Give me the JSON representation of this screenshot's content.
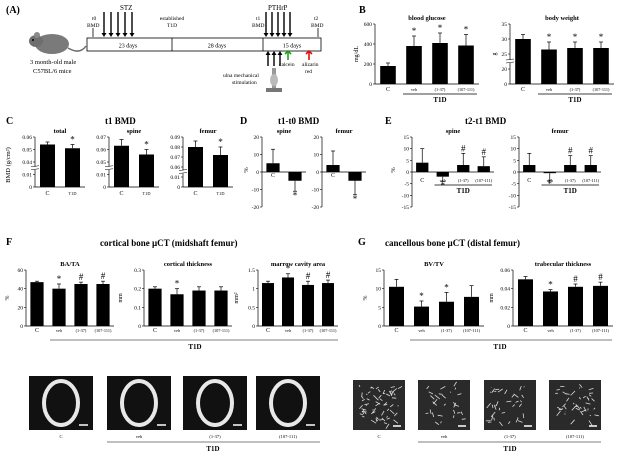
{
  "panelA": {
    "label": "(A)",
    "mouse": "3 month-old male",
    "strain": "C57BL/6 mice",
    "t0": "t0",
    "t0bmd": "BMD",
    "stz": "STZ",
    "established": "established",
    "t1d": "T1D",
    "pthrp": "PTHrP",
    "t1": "t1",
    "t1bmd": "BMD",
    "t2": "t2",
    "t2bmd": "BMD",
    "seg1": "23 days",
    "seg2": "28 days",
    "seg3": "15 days",
    "calcein": "calcein",
    "alizarin": "alizarin",
    "red": "red",
    "ulna1": "ulna mechanical",
    "ulna2": "stimulation"
  },
  "colors": {
    "green_arrow": "#1aa01a",
    "red_arrow": "#e01010",
    "bar": "#000000",
    "micro_bg": "#3a3a3a"
  },
  "panelB": {
    "label": "B",
    "charts": [
      {
        "title": "blood  glucose",
        "ylabel": "mg/dL",
        "ticks": [
          "0",
          "200",
          "400",
          "600"
        ],
        "ylim": [
          0,
          600
        ],
        "cats": [
          "C",
          "veh",
          "(1-37)",
          "(107-111)"
        ],
        "values": [
          180,
          380,
          410,
          385
        ],
        "err": [
          30,
          100,
          100,
          110
        ],
        "stars": [
          "",
          "*",
          "*",
          "*"
        ],
        "group": "T1D"
      },
      {
        "title": "body  weight",
        "ylabel": "g",
        "ticks": [
          "0",
          "20",
          "25",
          "30",
          "35"
        ],
        "ylim": [
          0,
          35
        ],
        "cats": [
          "C",
          "veh",
          "(1-37)",
          "(107-111)"
        ],
        "values": [
          30,
          26.5,
          27,
          27
        ],
        "err": [
          1.5,
          2.5,
          2,
          2
        ],
        "stars": [
          "",
          "*",
          "*",
          "*"
        ],
        "group": "T1D"
      }
    ]
  },
  "panelC": {
    "label": "C",
    "title": "t1 BMD",
    "ylabel": "BMD (g/cm²)",
    "charts": [
      {
        "title": "total",
        "ticks": [
          "0",
          "0.01",
          "0.04",
          "0.05",
          "0.06"
        ],
        "ylim": [
          0,
          0.06
        ],
        "cats": [
          "C",
          "T1D"
        ],
        "values": [
          0.054,
          0.051
        ],
        "err": [
          0.002,
          0.003
        ],
        "stars": [
          "",
          "*"
        ]
      },
      {
        "title": "spine",
        "ticks": [
          "0",
          "0.01",
          "0.05",
          "0.06",
          "0.07"
        ],
        "ylim": [
          0,
          0.07
        ],
        "cats": [
          "C",
          "T1D"
        ],
        "values": [
          0.063,
          0.056
        ],
        "err": [
          0.005,
          0.004
        ],
        "stars": [
          "",
          "*"
        ]
      },
      {
        "title": "femur",
        "ticks": [
          "0",
          "0.01",
          "0.06",
          "0.07",
          "0.08",
          "0.09"
        ],
        "ylim": [
          0,
          0.09
        ],
        "cats": [
          "C",
          "T1D"
        ],
        "values": [
          0.08,
          0.072
        ],
        "err": [
          0.006,
          0.008
        ],
        "stars": [
          "",
          "*"
        ]
      }
    ]
  },
  "panelD": {
    "label": "D",
    "title": "t1-t0 BMD",
    "ylabel": "%",
    "charts": [
      {
        "title": "spine",
        "ticks": [
          "-20",
          "-10",
          "0",
          "10",
          "20"
        ],
        "ylim": [
          -20,
          20
        ],
        "cats": [
          "C",
          "T1D"
        ],
        "values": [
          5,
          -5
        ],
        "err": [
          8,
          6
        ],
        "stars": [
          "",
          "*"
        ]
      },
      {
        "title": "femur",
        "ticks": [
          "-20",
          "-10",
          "0",
          "10",
          "20"
        ],
        "ylim": [
          -20,
          20
        ],
        "cats": [
          "C",
          "T1D"
        ],
        "values": [
          4,
          -5
        ],
        "err": [
          8,
          8
        ],
        "stars": [
          "",
          "*"
        ]
      }
    ]
  },
  "panelE": {
    "label": "E",
    "title": "t2-t1 BMD",
    "ylabel": "%",
    "charts": [
      {
        "title": "spine",
        "ticks": [
          "-15",
          "-10",
          "-5",
          "0",
          "5",
          "10",
          "15"
        ],
        "ylim": [
          -15,
          15
        ],
        "cats": [
          "C",
          "veh",
          "(1-37)",
          "(107-111)"
        ],
        "values": [
          4,
          -2,
          3,
          2.5
        ],
        "err": [
          6,
          2,
          5,
          4
        ],
        "stars": [
          "",
          "*",
          "#",
          "#"
        ],
        "group": "T1D"
      },
      {
        "title": "femur",
        "ticks": [
          "-15",
          "-10",
          "-5",
          "0",
          "5",
          "10",
          "15"
        ],
        "ylim": [
          -15,
          15
        ],
        "cats": [
          "C",
          "veh",
          "(1-37)",
          "(107-111)"
        ],
        "values": [
          3,
          -0.5,
          3,
          3
        ],
        "err": [
          5,
          3,
          4,
          4
        ],
        "stars": [
          "",
          "*",
          "#",
          "#"
        ],
        "group": "T1D"
      }
    ]
  },
  "panelF": {
    "label": "F",
    "title": "cortical bone µCT (midshaft femur)",
    "group": "T1D",
    "charts": [
      {
        "title": "BA/TA",
        "ylabel": "%",
        "ticks": [
          "0",
          "20",
          "40",
          "60"
        ],
        "ylim": [
          0,
          60
        ],
        "cats": [
          "C",
          "veh",
          "(1-37)",
          "(107-111)"
        ],
        "values": [
          47,
          40,
          45,
          45
        ],
        "err": [
          1,
          5,
          2,
          3
        ],
        "stars": [
          "",
          "*",
          "#",
          "#"
        ]
      },
      {
        "title": "cortical  thickness",
        "ylabel": "mm",
        "ticks": [
          "0",
          "0.1",
          "0.2",
          "0.3"
        ],
        "ylim": [
          0,
          0.3
        ],
        "cats": [
          "C",
          "veh",
          "(1-37)",
          "(107-111)"
        ],
        "values": [
          0.2,
          0.17,
          0.19,
          0.19
        ],
        "err": [
          0.01,
          0.03,
          0.02,
          0.02
        ],
        "stars": [
          "",
          "*",
          "",
          ""
        ]
      },
      {
        "title": "marrow  cavity  area",
        "ylabel": "mm²",
        "ticks": [
          "0",
          "0.5",
          "1",
          "1.5"
        ],
        "ylim": [
          0,
          1.5
        ],
        "cats": [
          "C",
          "veh",
          "(1-37)",
          "(107-111)"
        ],
        "values": [
          1.15,
          1.3,
          1.1,
          1.15
        ],
        "err": [
          0.05,
          0.1,
          0.1,
          0.08
        ],
        "stars": [
          "",
          "*",
          "#",
          "#"
        ]
      }
    ],
    "images": [
      "C",
      "veh",
      "(1-37)",
      "(107-111)"
    ]
  },
  "panelG": {
    "label": "G",
    "title": "cancellous bone µCT (distal femur)",
    "group": "T1D",
    "charts": [
      {
        "title": "BV/TV",
        "ylabel": "%",
        "ticks": [
          "0",
          "5",
          "10",
          "15"
        ],
        "ylim": [
          0,
          15
        ],
        "cats": [
          "C",
          "veh",
          "(1-37)",
          "(107-111)"
        ],
        "values": [
          10.5,
          5.2,
          6.5,
          7.8
        ],
        "err": [
          2,
          1.5,
          2.5,
          3
        ],
        "stars": [
          "",
          "*",
          "*",
          ""
        ]
      },
      {
        "title": "trabecular  thickness",
        "ylabel": "mm",
        "ticks": [
          "0",
          "0.02",
          "0.04",
          "0.06"
        ],
        "ylim": [
          0,
          0.06
        ],
        "cats": [
          "C",
          "veh",
          "(1-37)",
          "(107-111)"
        ],
        "values": [
          0.05,
          0.037,
          0.042,
          0.043
        ],
        "err": [
          0.003,
          0.002,
          0.003,
          0.004
        ],
        "stars": [
          "",
          "*",
          "#",
          "#"
        ]
      }
    ],
    "images": [
      "C",
      "veh",
      "(1-37)",
      "(107-111)"
    ]
  }
}
